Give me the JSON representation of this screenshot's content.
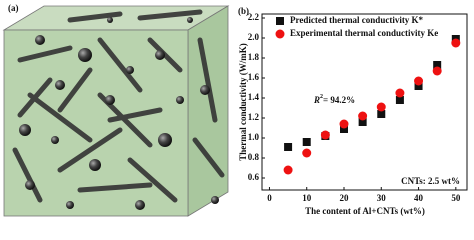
{
  "panel_a": {
    "label": "(a)"
  },
  "chart_data": {
    "type": "scatter",
    "panel_label": "(b)",
    "x_label": "The content of Al+CNTs (wt%)",
    "y_label": "Thermal conductivity (W/mK)",
    "x": [
      5,
      10,
      15,
      20,
      25,
      30,
      35,
      40,
      45,
      50
    ],
    "series": [
      {
        "name": "Predicted thermal conductivity K*",
        "color": "#111111",
        "marker": "square",
        "values": [
          0.91,
          0.96,
          1.02,
          1.09,
          1.16,
          1.24,
          1.38,
          1.52,
          1.73,
          1.99
        ]
      },
      {
        "name": "Experimental thermal conductivity Ke",
        "color": "#ee1111",
        "marker": "circle",
        "values": [
          0.68,
          0.85,
          1.03,
          1.14,
          1.22,
          1.31,
          1.45,
          1.57,
          1.67,
          1.95
        ]
      }
    ],
    "xlim": [
      -2,
      53
    ],
    "xticks": [
      0,
      10,
      20,
      30,
      40,
      50
    ],
    "ylim": [
      0.48,
      2.24
    ],
    "yticks": [
      0.6,
      0.8,
      {
        "value": 1,
        "label": "1.0"
      },
      1.2,
      1.4,
      1.6,
      1.8,
      {
        "value": 2,
        "label": "2.0"
      },
      2.2
    ],
    "annotations": {
      "r_squared": {
        "symbol": "R",
        "superscript": "2",
        "text": "= 94.2%"
      },
      "note": "CNTs: 2.5 wt%"
    },
    "legend": "upper-left"
  }
}
